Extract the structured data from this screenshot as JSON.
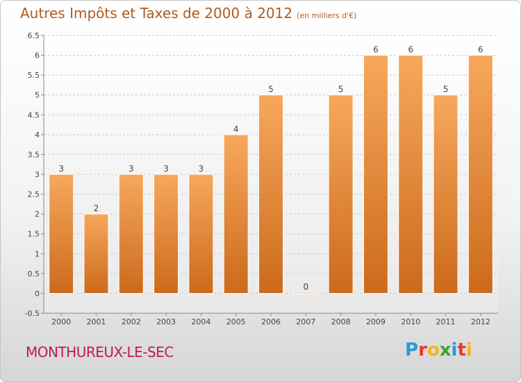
{
  "title": "Autres Impôts et Taxes de 2000 à 2012",
  "unit": "(en milliers d'€)",
  "commune": "MONTHUREUX-LE-SEC",
  "brand": {
    "letters": [
      "P",
      "r",
      "o",
      "x",
      "i",
      "t",
      "i"
    ],
    "colors": [
      "#2a9ad8",
      "#e5392f",
      "#f2b51d",
      "#43a32d",
      "#2a9ad8",
      "#e5392f",
      "#f2b51d"
    ]
  },
  "colors": {
    "bar_top": "#f7a85c",
    "bar_bottom": "#cc6a1c",
    "title": "#b05a1e",
    "commune": "#c2185b"
  },
  "chart_data": {
    "type": "bar",
    "title": "Autres Impôts et Taxes de 2000 à 2012",
    "xlabel": "",
    "ylabel": "",
    "categories": [
      "2000",
      "2001",
      "2002",
      "2003",
      "2004",
      "2005",
      "2006",
      "2007",
      "2008",
      "2009",
      "2010",
      "2011",
      "2012"
    ],
    "values": [
      3,
      2,
      3,
      3,
      3,
      4,
      5,
      0,
      5,
      6,
      6,
      5,
      6
    ],
    "data_labels": [
      "3",
      "2",
      "3",
      "3",
      "3",
      "4",
      "5",
      "0",
      "5",
      "6",
      "6",
      "5",
      "6"
    ],
    "yticks": [
      "-0.5",
      "0",
      "0.5",
      "1",
      "1.5",
      "2",
      "2.5",
      "3",
      "3.5",
      "4",
      "4.5",
      "5",
      "5.5",
      "6",
      "6.5"
    ],
    "ylim": [
      -0.5,
      6.5
    ],
    "grid": "horizontal-dashed",
    "legend": "none"
  }
}
